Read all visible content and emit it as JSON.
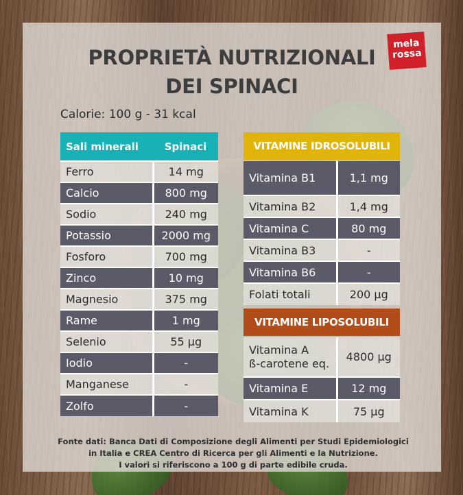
{
  "logo": {
    "line1": "mela",
    "line2": "rossa"
  },
  "title": {
    "line1": "PROPRIETÀ NUTRIZIONALI",
    "line2": "DEI SPINACI"
  },
  "calorie": "Calorie: 100 g - 31 kcal",
  "minerals": {
    "header": [
      "Sali minerali",
      "Spinaci"
    ],
    "rows": [
      {
        "name": "Ferro",
        "value": "14 mg"
      },
      {
        "name": "Calcio",
        "value": "800 mg"
      },
      {
        "name": "Sodio",
        "value": "240 mg"
      },
      {
        "name": "Potassio",
        "value": "2000 mg"
      },
      {
        "name": "Fosforo",
        "value": "700 mg"
      },
      {
        "name": "Zinco",
        "value": "10 mg"
      },
      {
        "name": "Magnesio",
        "value": "375 mg"
      },
      {
        "name": "Rame",
        "value": "1 mg"
      },
      {
        "name": "Selenio",
        "value": "55 µg"
      },
      {
        "name": "Iodio",
        "value": "-"
      },
      {
        "name": "Manganese",
        "value": "-"
      },
      {
        "name": "Zolfo",
        "value": "-"
      }
    ]
  },
  "vitamins_water": {
    "header": "VITAMINE IDROSOLUBILI",
    "rows": [
      {
        "name": "Vitamina B1",
        "value": "1,1 mg"
      },
      {
        "name": "Vitamina B2",
        "value": "1,4 mg"
      },
      {
        "name": "Vitamina C",
        "value": "80 mg"
      },
      {
        "name": "Vitamina B3",
        "value": "-"
      },
      {
        "name": "Vitamina B6",
        "value": "-"
      },
      {
        "name": "Folati totali",
        "value": "200 µg"
      }
    ]
  },
  "vitamins_fat": {
    "header": "VITAMINE LIPOSOLUBILI",
    "rows": [
      {
        "name": "Vitamina A",
        "name2": "ß-carotene eq.",
        "value": "4800 µg"
      },
      {
        "name": "Vitamina E",
        "value": "12 mg"
      },
      {
        "name": "Vitamina K",
        "value": "75 µg"
      }
    ]
  },
  "footer": {
    "line1": "Fonte dati: Banca Dati di Composizione degli Alimenti per Studi Epidemiologici",
    "line2": "in Italia e CREA Centro di Ricerca per gli Alimenti e la Nutrizione.",
    "line3": "I valori si riferiscono a 100 g di parte edibile cruda."
  }
}
